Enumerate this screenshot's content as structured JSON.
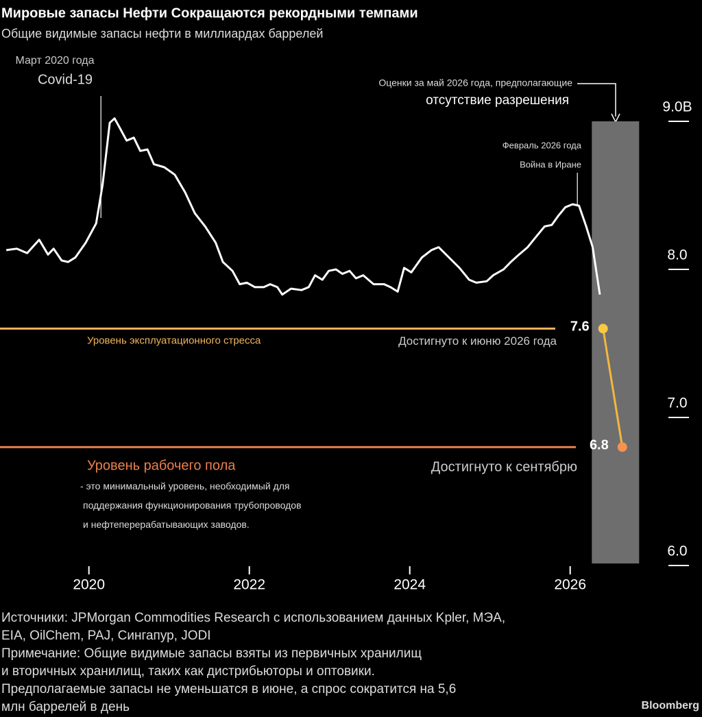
{
  "chart_data": {
    "type": "line",
    "title": "Мировые запасы Нефти Сокращаются рекордными темпами",
    "subtitle": "Общие видимые запасы нефти в миллиардах баррелей",
    "xlim": [
      2018.9,
      2026.9
    ],
    "xticks": [
      2020,
      2022,
      2024,
      2026
    ],
    "ylim": [
      6.0,
      9.0
    ],
    "yticks": [
      {
        "value": 6,
        "label": "6.0"
      },
      {
        "value": 7,
        "label": "7.0"
      },
      {
        "value": 8,
        "label": "8.0"
      },
      {
        "value": 9,
        "label": "9.0B"
      }
    ],
    "series": [
      {
        "color": "#ffffff",
        "x": [
          2018.97,
          2019.1,
          2019.23,
          2019.38,
          2019.49,
          2019.56,
          2019.66,
          2019.74,
          2019.83,
          2019.96,
          2020.09,
          2020.17,
          2020.26,
          2020.32,
          2020.38,
          2020.47,
          2020.56,
          2020.64,
          2020.73,
          2020.81,
          2020.94,
          2021.07,
          2021.2,
          2021.32,
          2021.45,
          2021.58,
          2021.67,
          2021.79,
          2021.88,
          2021.97,
          2022.07,
          2022.18,
          2022.26,
          2022.35,
          2022.41,
          2022.52,
          2022.65,
          2022.74,
          2022.82,
          2022.91,
          2022.99,
          2023.08,
          2023.16,
          2023.25,
          2023.33,
          2023.42,
          2023.55,
          2023.68,
          2023.76,
          2023.85,
          2023.93,
          2024.02,
          2024.15,
          2024.27,
          2024.36,
          2024.49,
          2024.62,
          2024.74,
          2024.83,
          2024.96,
          2025.04,
          2025.17,
          2025.26,
          2025.34,
          2025.47,
          2025.56,
          2025.68,
          2025.77,
          2025.85,
          2025.94,
          2026.03,
          2026.11,
          2026.2,
          2026.28,
          2026.37
        ],
        "values": [
          8.13,
          8.14,
          8.11,
          8.2,
          8.1,
          8.14,
          8.06,
          8.05,
          8.08,
          8.18,
          8.31,
          8.57,
          8.99,
          9.02,
          8.96,
          8.87,
          8.89,
          8.8,
          8.81,
          8.71,
          8.69,
          8.64,
          8.52,
          8.38,
          8.29,
          8.18,
          8.05,
          7.99,
          7.9,
          7.91,
          7.88,
          7.88,
          7.9,
          7.88,
          7.83,
          7.87,
          7.86,
          7.88,
          7.96,
          7.93,
          7.99,
          8.0,
          7.97,
          7.99,
          7.94,
          7.96,
          7.9,
          7.9,
          7.88,
          7.85,
          8.01,
          7.98,
          8.08,
          8.13,
          8.15,
          8.08,
          8.01,
          7.93,
          7.91,
          7.92,
          7.96,
          8.0,
          8.05,
          8.09,
          8.15,
          8.21,
          8.29,
          8.3,
          8.36,
          8.42,
          8.44,
          8.43,
          8.29,
          8.15,
          7.83
        ]
      },
      {
        "color": "#f5b63f",
        "point_colors": [
          "#f9c846",
          "#f4924f"
        ],
        "x": [
          2026.41,
          2026.65
        ],
        "values": [
          7.6,
          6.8
        ]
      }
    ],
    "shaded_x": [
      2026.27,
      2026.86
    ],
    "reference_lines": [
      {
        "value": 7.6,
        "color": "#f0b45c",
        "label": "Уровень эксплуатационного стресса",
        "note": "Достигнуто к июню 2026 года"
      },
      {
        "value": 6.8,
        "color": "#ee7f4e",
        "label": "Уровень рабочего пола",
        "description": [
          "- это минимальный уровень, необходимый для",
          "поддержания функционирования трубопроводов",
          "и нефтеперерабатывающих заводов."
        ],
        "note": "Достигнуто к сентябрю"
      }
    ],
    "annotations": [
      {
        "x": 2020.15,
        "lines": [
          "Март 2020 года",
          "Covid-19"
        ]
      },
      {
        "x": 2026.09,
        "lines": [
          "Февраль 2026 года",
          "Война в Иране"
        ]
      },
      {
        "lines": [
          "Оценки за май 2026 года, предполагающие",
          "отсутствие разрешения"
        ]
      }
    ],
    "source_lines": [
      "Источники: JPMorgan Commodities Research с использованием данных Kpler, МЭА,",
      "EIA, OilChem, PAJ, Сингапур, JODI",
      "Примечание: Общие видимые запасы взяты из первичных хранилищ",
      "и вторичных хранилищ, таких как дистрибьюторы и оптовики.",
      "Предполагаемые запасы не уменьшатся в июне, а спрос сократится на 5,6",
      "млн баррелей в день"
    ],
    "credit": "Bloomberg"
  }
}
